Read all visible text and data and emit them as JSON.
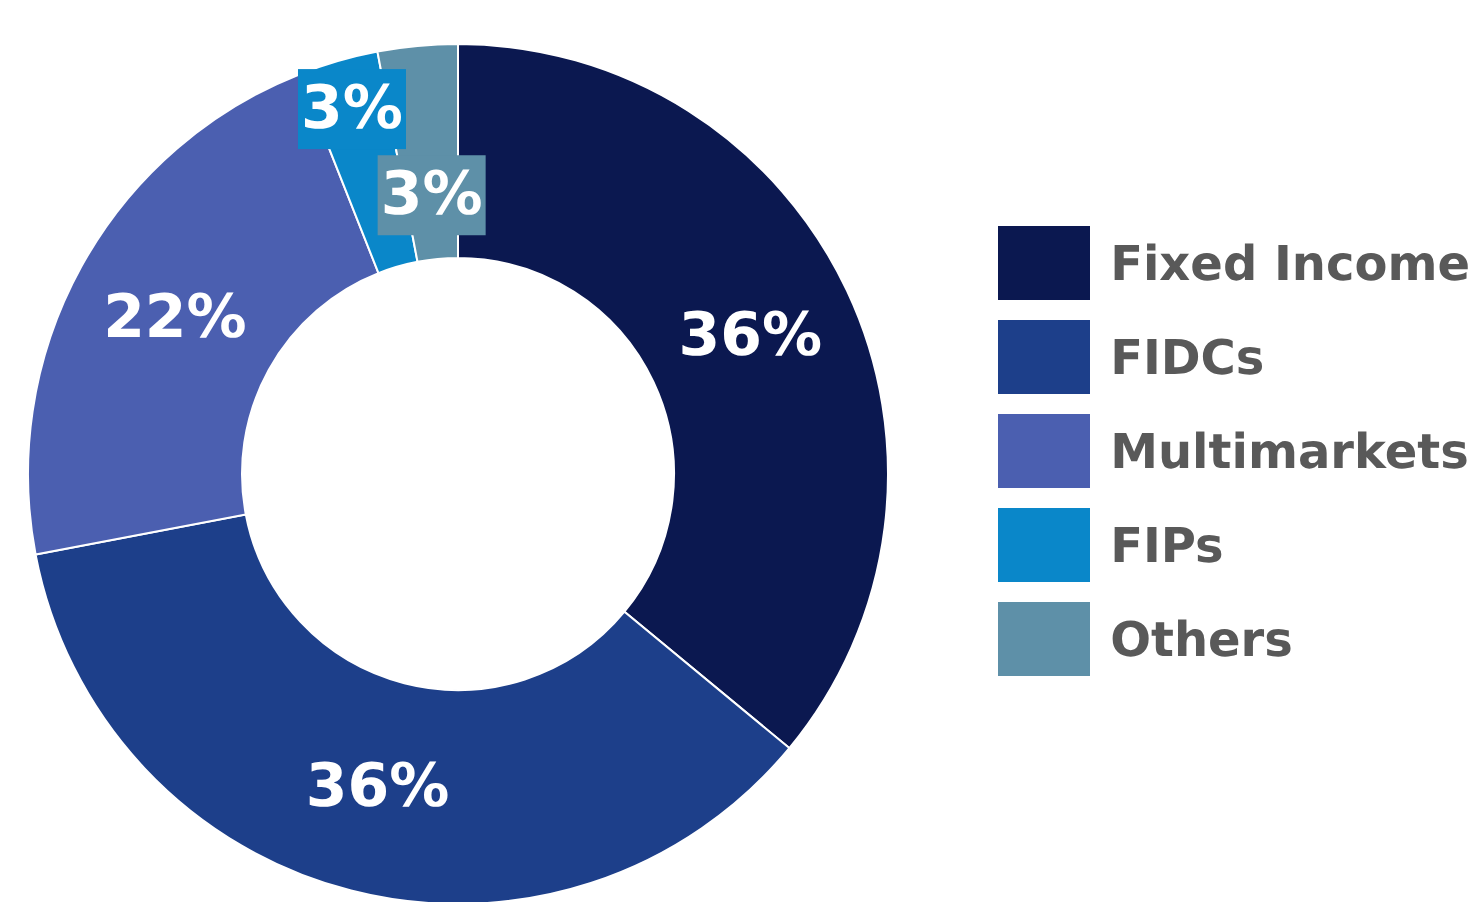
{
  "chart_data": {
    "type": "donut",
    "categories": [
      "Fixed Income",
      "FIDCs",
      "Multimarkets",
      "FIPs",
      "Others"
    ],
    "values": [
      36,
      36,
      22,
      3,
      3
    ],
    "colors": [
      "#0b1850",
      "#1d3f8a",
      "#4b5fb0",
      "#0a87c9",
      "#5e90a8"
    ],
    "value_labels": [
      "36%",
      "36%",
      "22%",
      "3%",
      "3%"
    ],
    "legend": "right"
  }
}
